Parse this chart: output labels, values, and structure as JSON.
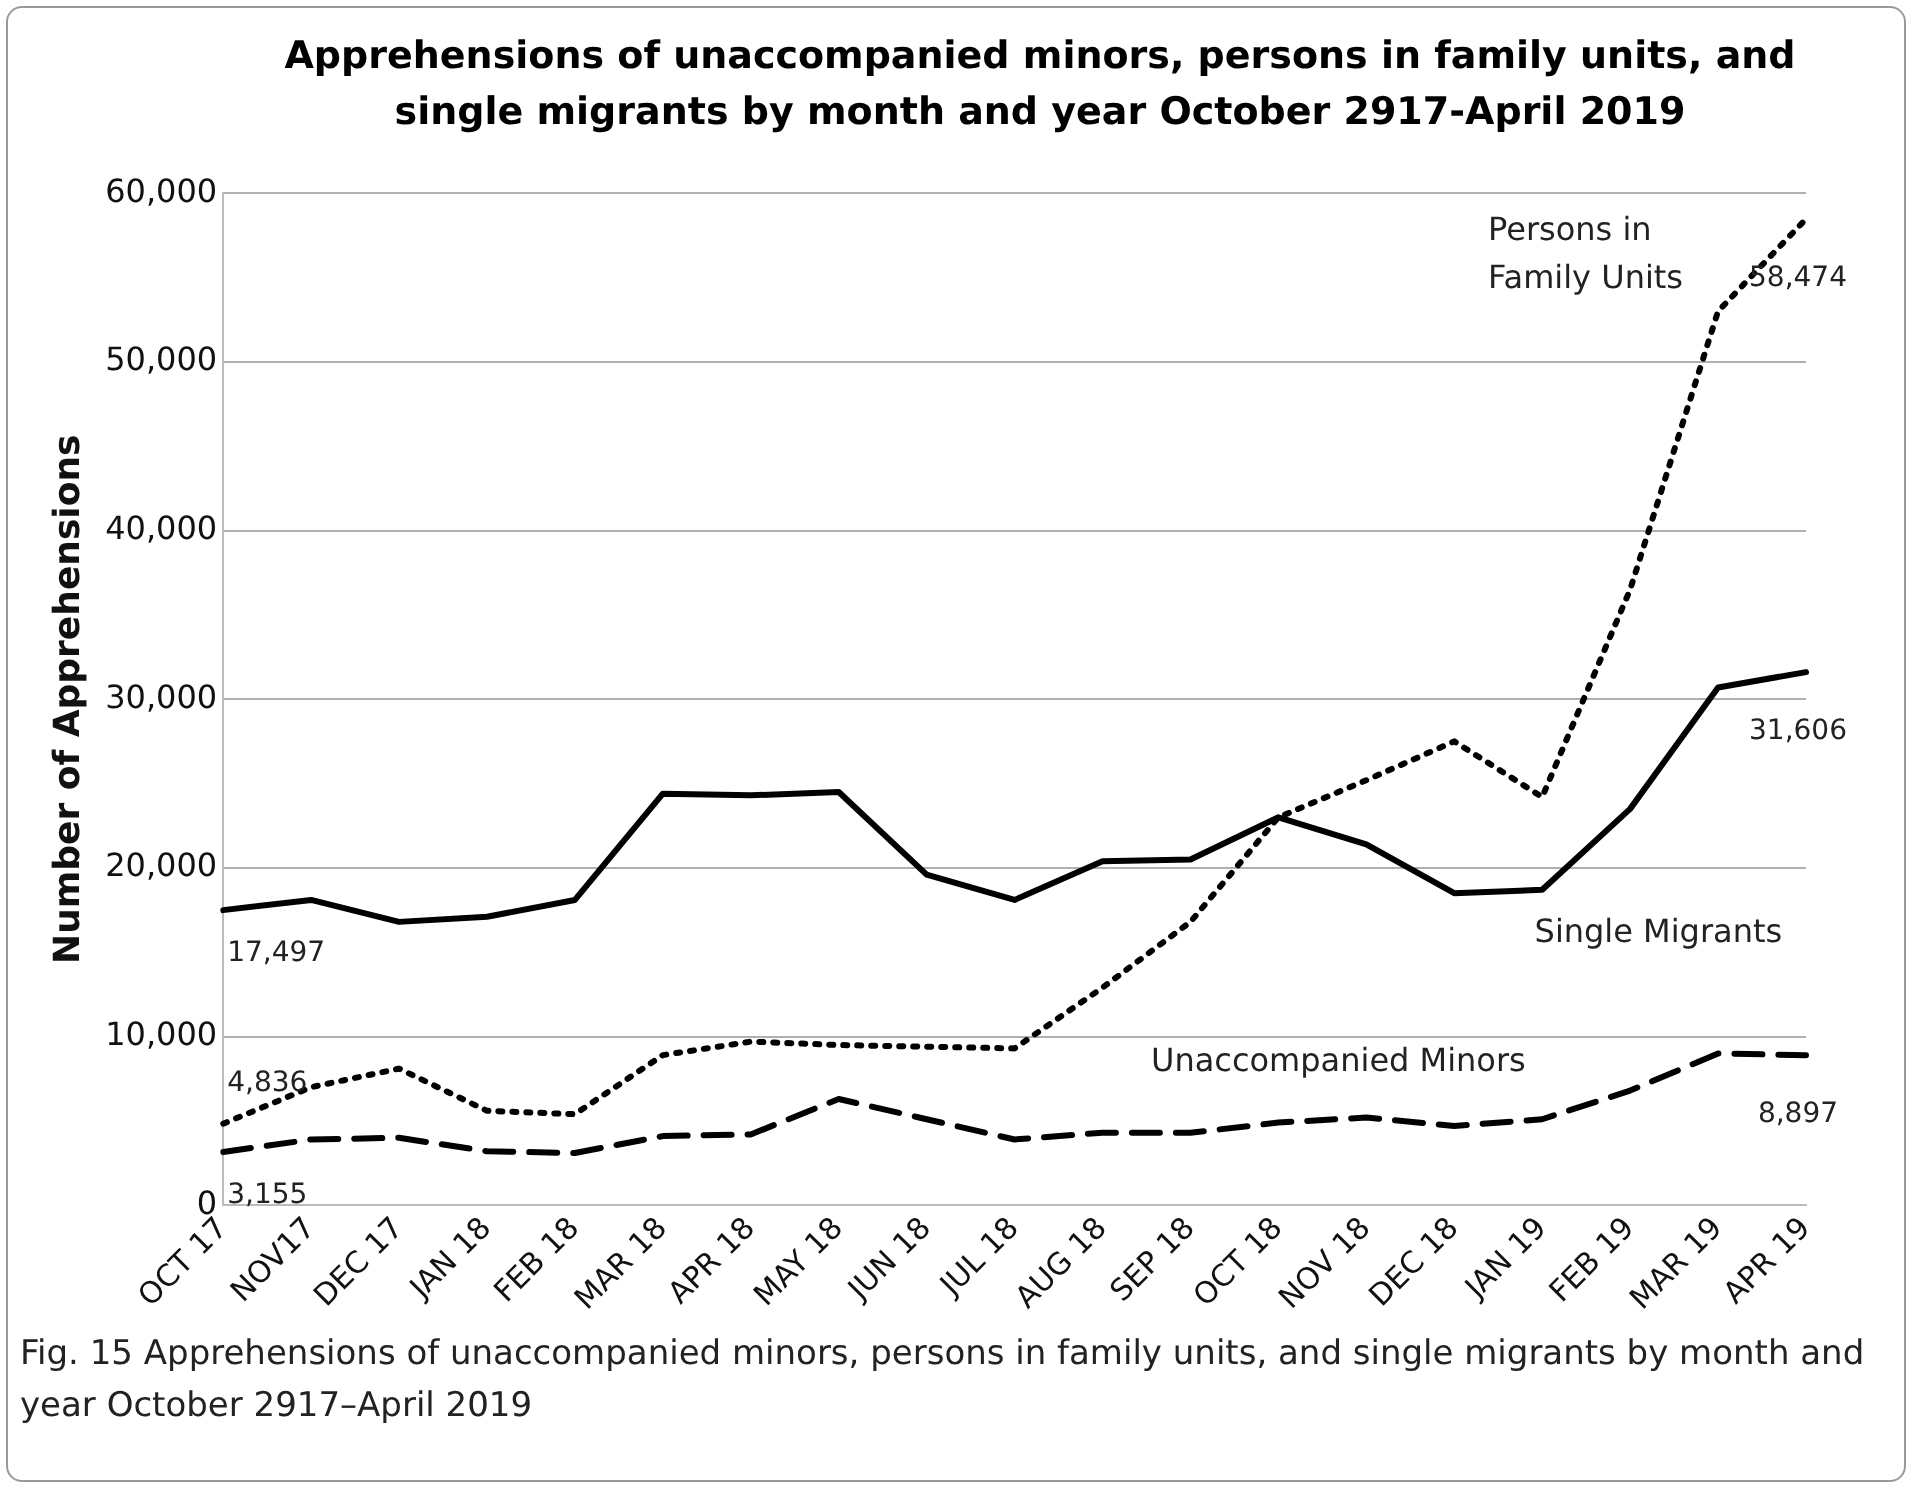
{
  "chart_data": {
    "type": "line",
    "title": "Apprehensions of unaccompanied minors, persons in family units, and single migrants by month and year October 2917-April 2019",
    "ylabel": "Number of Apprehensions",
    "categories": [
      "OCT 17",
      "NOV17",
      "DEC 17",
      "JAN 18",
      "FEB 18",
      "MAR 18",
      "APR 18",
      "MAY 18",
      "JUN 18",
      "JUL 18",
      "AUG 18",
      "SEP 18",
      "OCT 18",
      "NOV 18",
      "DEC 18",
      "JAN 19",
      "FEB 19",
      "MAR 19",
      "APR 19"
    ],
    "series": [
      {
        "name": "Single Migrants",
        "color": "#000000",
        "line_style": "solid",
        "values": [
          17497,
          18100,
          16800,
          17100,
          18100,
          24400,
          24300,
          24500,
          19600,
          18100,
          20400,
          20500,
          23000,
          21400,
          18500,
          18700,
          23500,
          30700,
          31606
        ],
        "value_labels": [
          "17,497",
          null,
          null,
          null,
          null,
          null,
          null,
          null,
          null,
          null,
          null,
          null,
          null,
          null,
          null,
          null,
          null,
          null,
          "31,606"
        ]
      },
      {
        "name": "Persons in Family Units",
        "color": "#000000",
        "line_style": "dotted",
        "values": [
          4836,
          7000,
          8100,
          5600,
          5400,
          8900,
          9700,
          9500,
          9400,
          9300,
          12900,
          16800,
          23000,
          25200,
          27500,
          24200,
          36500,
          53000,
          58474
        ],
        "value_labels": [
          "4,836",
          null,
          null,
          null,
          null,
          null,
          null,
          null,
          null,
          null,
          null,
          null,
          null,
          null,
          null,
          null,
          null,
          null,
          "58,474"
        ]
      },
      {
        "name": "Unaccompanied Minors",
        "color": "#000000",
        "line_style": "dashed",
        "values": [
          3155,
          3900,
          4000,
          3200,
          3100,
          4100,
          4200,
          6300,
          5100,
          3900,
          4300,
          4300,
          4900,
          5200,
          4700,
          5100,
          6800,
          9000,
          8897
        ],
        "value_labels": [
          "3,155",
          null,
          null,
          null,
          null,
          null,
          null,
          null,
          null,
          null,
          null,
          null,
          null,
          null,
          null,
          null,
          null,
          null,
          "8,897"
        ]
      }
    ],
    "ylim": [
      0,
      60000
    ],
    "yticks": [
      0,
      {
        "value": 10000,
        "label": "10,000"
      },
      {
        "value": 20000,
        "label": "20,000"
      },
      {
        "value": 30000,
        "label": "30,000"
      },
      {
        "value": 40000,
        "label": "40,000"
      },
      {
        "value": 50000,
        "label": "50,000"
      },
      {
        "value": 60000,
        "label": "60,000"
      }
    ],
    "grid": "y",
    "legend": false,
    "marker": "none",
    "annotations": [
      "Fig. 15 Apprehensions of unaccompanied minors, persons in family units, and single migrants by month and year October 2917–April 2019"
    ]
  }
}
